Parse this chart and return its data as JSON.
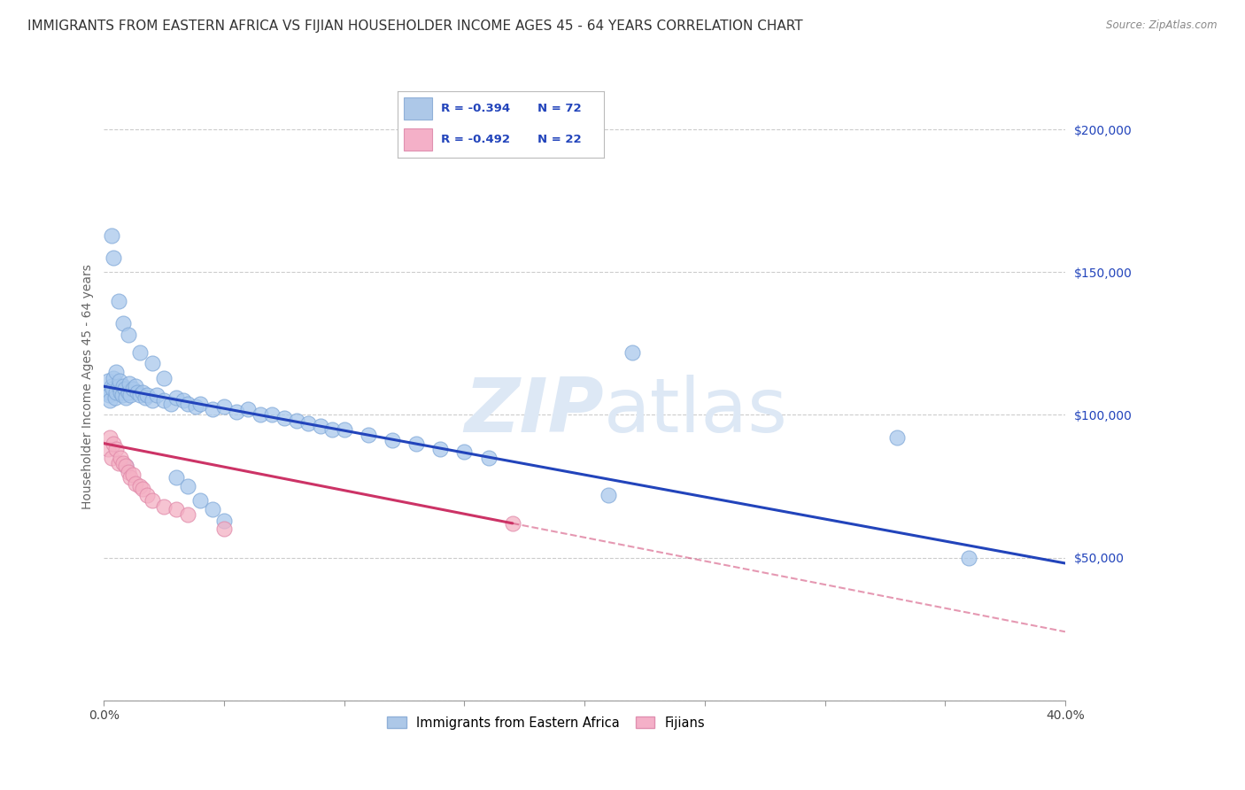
{
  "title": "IMMIGRANTS FROM EASTERN AFRICA VS FIJIAN HOUSEHOLDER INCOME AGES 45 - 64 YEARS CORRELATION CHART",
  "source": "Source: ZipAtlas.com",
  "ylabel": "Householder Income Ages 45 - 64 years",
  "legend1_r": "R = -0.394",
  "legend1_n": "N = 72",
  "legend2_r": "R = -0.492",
  "legend2_n": "N = 22",
  "legend1_fill": "#adc8e8",
  "legend1_edge": "#90b0d8",
  "legend2_fill": "#f4b0c8",
  "legend2_edge": "#e090b0",
  "blue_dot_color": "#a8c8ec",
  "blue_dot_edge": "#80a8d8",
  "pink_dot_color": "#f4b0c4",
  "pink_dot_edge": "#e088a8",
  "blue_line_color": "#2244bb",
  "pink_line_color": "#cc3366",
  "watermark_color": "#dde8f5",
  "grid_color": "#cccccc",
  "bg_color": "#ffffff",
  "blue_scatter": [
    [
      0.1,
      108000
    ],
    [
      0.15,
      112000
    ],
    [
      0.2,
      107000
    ],
    [
      0.25,
      105000
    ],
    [
      0.3,
      110000
    ],
    [
      0.35,
      109000
    ],
    [
      0.4,
      113000
    ],
    [
      0.45,
      106000
    ],
    [
      0.5,
      108000
    ],
    [
      0.5,
      115000
    ],
    [
      0.6,
      110000
    ],
    [
      0.65,
      112000
    ],
    [
      0.7,
      108000
    ],
    [
      0.75,
      107000
    ],
    [
      0.8,
      110000
    ],
    [
      0.85,
      109000
    ],
    [
      0.9,
      106000
    ],
    [
      1.0,
      108000
    ],
    [
      1.05,
      111000
    ],
    [
      1.1,
      107000
    ],
    [
      1.2,
      109000
    ],
    [
      1.3,
      110000
    ],
    [
      1.4,
      108000
    ],
    [
      1.5,
      107000
    ],
    [
      1.6,
      108000
    ],
    [
      1.7,
      106000
    ],
    [
      1.8,
      107000
    ],
    [
      2.0,
      105000
    ],
    [
      2.2,
      107000
    ],
    [
      2.5,
      105000
    ],
    [
      2.8,
      104000
    ],
    [
      3.0,
      106000
    ],
    [
      3.3,
      105000
    ],
    [
      3.5,
      104000
    ],
    [
      3.8,
      103000
    ],
    [
      4.0,
      104000
    ],
    [
      4.5,
      102000
    ],
    [
      5.0,
      103000
    ],
    [
      5.5,
      101000
    ],
    [
      6.0,
      102000
    ],
    [
      6.5,
      100000
    ],
    [
      7.0,
      100000
    ],
    [
      7.5,
      99000
    ],
    [
      8.0,
      98000
    ],
    [
      8.5,
      97000
    ],
    [
      9.0,
      96000
    ],
    [
      9.5,
      95000
    ],
    [
      10.0,
      95000
    ],
    [
      11.0,
      93000
    ],
    [
      12.0,
      91000
    ],
    [
      13.0,
      90000
    ],
    [
      14.0,
      88000
    ],
    [
      15.0,
      87000
    ],
    [
      16.0,
      85000
    ],
    [
      0.3,
      163000
    ],
    [
      0.4,
      155000
    ],
    [
      0.6,
      140000
    ],
    [
      0.8,
      132000
    ],
    [
      1.0,
      128000
    ],
    [
      1.5,
      122000
    ],
    [
      2.0,
      118000
    ],
    [
      2.5,
      113000
    ],
    [
      3.0,
      78000
    ],
    [
      3.5,
      75000
    ],
    [
      4.0,
      70000
    ],
    [
      4.5,
      67000
    ],
    [
      5.0,
      63000
    ],
    [
      22.0,
      122000
    ],
    [
      33.0,
      92000
    ],
    [
      36.0,
      50000
    ],
    [
      21.0,
      72000
    ],
    [
      0.9,
      82000
    ]
  ],
  "pink_scatter": [
    [
      0.15,
      88000
    ],
    [
      0.25,
      92000
    ],
    [
      0.3,
      85000
    ],
    [
      0.4,
      90000
    ],
    [
      0.5,
      88000
    ],
    [
      0.6,
      83000
    ],
    [
      0.7,
      85000
    ],
    [
      0.8,
      83000
    ],
    [
      0.9,
      82000
    ],
    [
      1.0,
      80000
    ],
    [
      1.1,
      78000
    ],
    [
      1.2,
      79000
    ],
    [
      1.3,
      76000
    ],
    [
      1.5,
      75000
    ],
    [
      1.6,
      74000
    ],
    [
      1.8,
      72000
    ],
    [
      2.0,
      70000
    ],
    [
      2.5,
      68000
    ],
    [
      3.0,
      67000
    ],
    [
      3.5,
      65000
    ],
    [
      5.0,
      60000
    ],
    [
      17.0,
      62000
    ]
  ],
  "blue_line_x0": 0.0,
  "blue_line_y0": 110000,
  "blue_line_x1": 40.0,
  "blue_line_y1": 48000,
  "pink_line_x0": 0.0,
  "pink_line_y0": 90000,
  "pink_line_x1": 17.0,
  "pink_line_y1": 62000,
  "pink_dash_x0": 17.0,
  "pink_dash_y0": 62000,
  "pink_dash_x1": 40.0,
  "pink_dash_y1": 24000,
  "xlim": [
    0.0,
    40.0
  ],
  "ylim": [
    0,
    220000
  ],
  "yticks": [
    0,
    50000,
    100000,
    150000,
    200000
  ],
  "xticks": [
    0,
    5,
    10,
    15,
    20,
    25,
    30,
    35,
    40
  ],
  "title_fontsize": 11,
  "tick_fontsize": 10,
  "ylabel_fontsize": 10
}
